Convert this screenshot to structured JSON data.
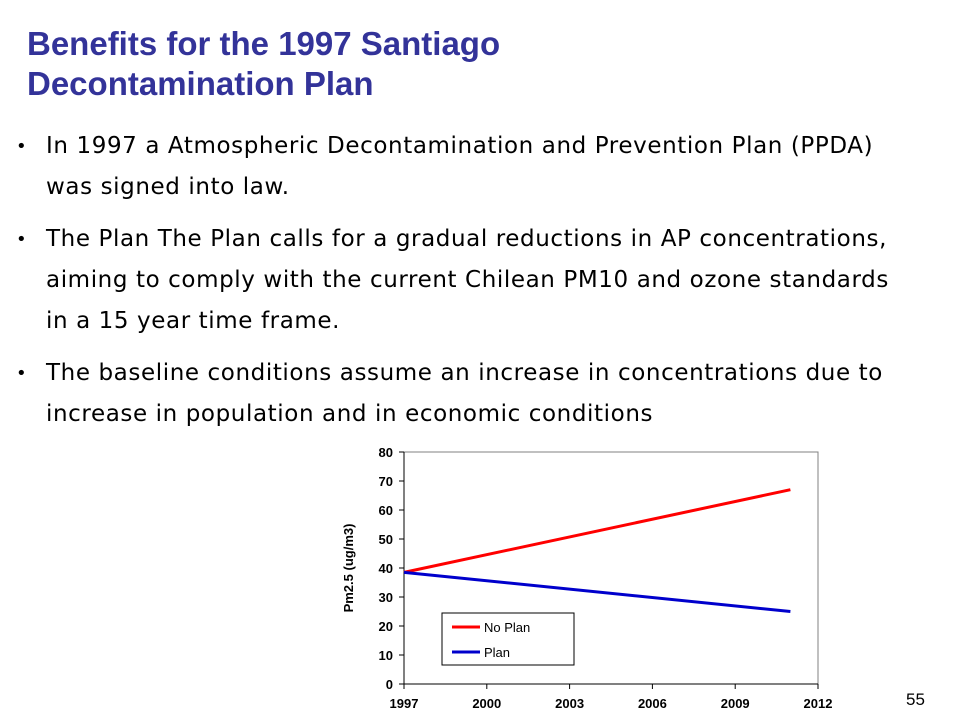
{
  "slide": {
    "title_lines": [
      "Benefits for the 1997 Santiago",
      "Decontamination Plan"
    ],
    "bullet_symbol": "•",
    "bullets": [
      "In 1997 a Atmospheric Decontamination and Prevention Plan (PPDA) was signed into law.",
      "The Plan The Plan calls for a gradual reductions in AP concentrations, aiming to comply with the current Chilean PM10 and ozone standards in a 15 year time frame.",
      "The baseline conditions assume an increase in concentrations due to increase in population and in economic conditions"
    ],
    "page_number": "55",
    "colors": {
      "title": "#333399",
      "text": "#000000"
    }
  },
  "chart_data": {
    "type": "line",
    "title": "",
    "xlabel": "",
    "ylabel": "Pm2.5 (ug/m3)",
    "xlim": [
      1997,
      2012
    ],
    "ylim": [
      0,
      80
    ],
    "xticks": [
      1997,
      2000,
      2003,
      2006,
      2009,
      2012
    ],
    "yticks": [
      0,
      10,
      20,
      30,
      40,
      50,
      60,
      70,
      80
    ],
    "grid": false,
    "legend_position": "bottom-left",
    "series": [
      {
        "name": "No Plan",
        "color": "#ff0000",
        "x": [
          1997,
          2011
        ],
        "y": [
          38.5,
          67
        ]
      },
      {
        "name": "Plan",
        "color": "#0000cc",
        "x": [
          1997,
          2011
        ],
        "y": [
          38.5,
          25
        ]
      }
    ]
  }
}
